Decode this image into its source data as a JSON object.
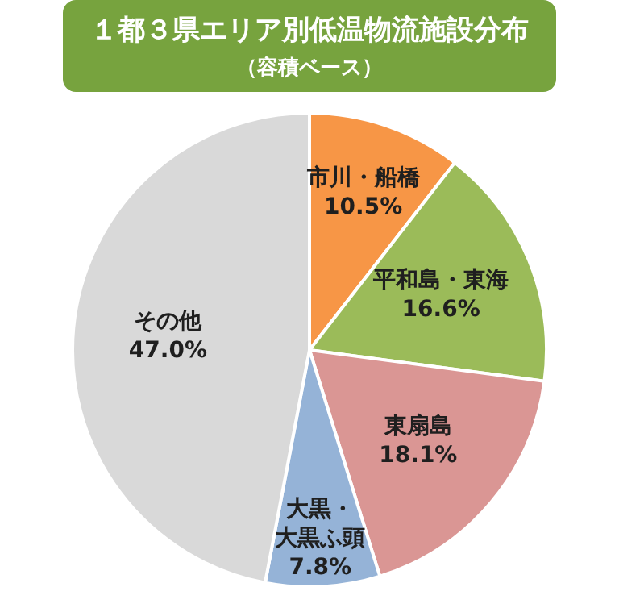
{
  "chart_data": {
    "type": "pie",
    "title": "１都３県エリア別低温物流施設分布",
    "subtitle": "（容積ベース）",
    "categories": [
      "市川・船橋",
      "平和島・東海",
      "東扇島",
      "大黒・大黒ふ頭",
      "その他"
    ],
    "values": [
      10.5,
      16.6,
      18.1,
      7.8,
      47.0
    ],
    "value_labels": [
      "10.5%",
      "16.6%",
      "18.1%",
      "7.8%",
      "47.0%"
    ],
    "colors": [
      "#f79646",
      "#9bbb59",
      "#da9694",
      "#95b3d7",
      "#d9d9d9"
    ],
    "legend": false
  }
}
